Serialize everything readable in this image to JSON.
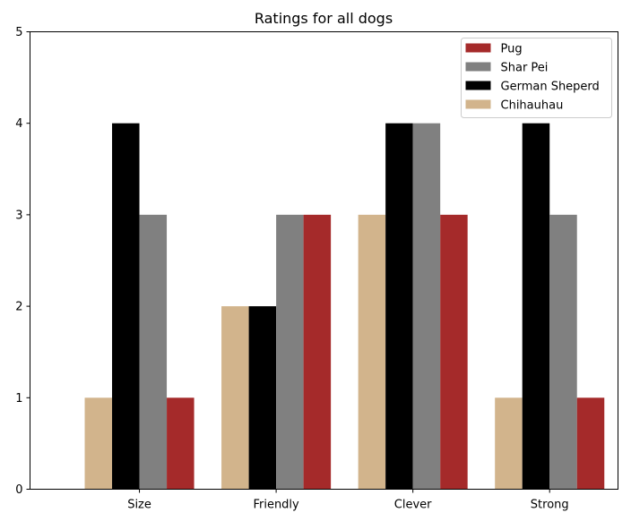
{
  "chart_data": {
    "type": "bar",
    "title": "Ratings for all dogs",
    "xlabel": "",
    "ylabel": "",
    "categories": [
      "Size",
      "Friendly",
      "Clever",
      "Strong"
    ],
    "ylim": [
      0,
      5
    ],
    "yticks": [
      0,
      1,
      2,
      3,
      4,
      5
    ],
    "series": [
      {
        "name": "Chihauhau",
        "color": "#d2b48c",
        "values": [
          1,
          2,
          3,
          1
        ]
      },
      {
        "name": "German Sheperd",
        "color": "#000000",
        "values": [
          4,
          2,
          4,
          4
        ]
      },
      {
        "name": "Shar Pei",
        "color": "#808080",
        "values": [
          3,
          3,
          4,
          3
        ]
      },
      {
        "name": "Pug",
        "color": "#a52a2a",
        "values": [
          1,
          3,
          3,
          1
        ]
      }
    ],
    "legend": {
      "position": "top-right",
      "order": [
        "Pug",
        "Shar Pei",
        "German Sheperd",
        "Chihauhau"
      ]
    },
    "grid": false
  }
}
